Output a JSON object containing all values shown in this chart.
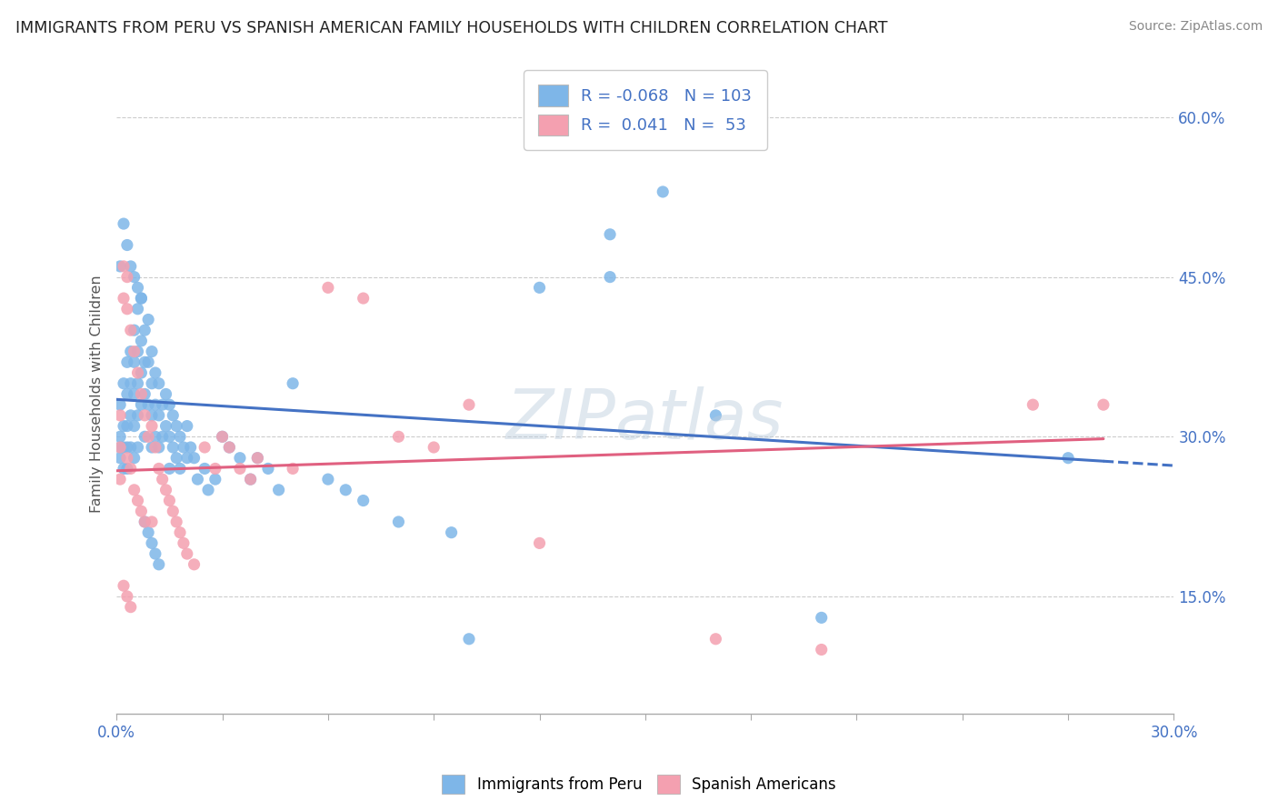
{
  "title": "IMMIGRANTS FROM PERU VS SPANISH AMERICAN FAMILY HOUSEHOLDS WITH CHILDREN CORRELATION CHART",
  "source": "Source: ZipAtlas.com",
  "ylabel": "Family Households with Children",
  "legend_label1": "Immigrants from Peru",
  "legend_label2": "Spanish Americans",
  "R1": -0.068,
  "N1": 103,
  "R2": 0.041,
  "N2": 53,
  "xlim": [
    0.0,
    0.3
  ],
  "ylim": [
    0.04,
    0.64
  ],
  "xticks": [
    0.0,
    0.03,
    0.06,
    0.09,
    0.12,
    0.15,
    0.18,
    0.21,
    0.24,
    0.27,
    0.3
  ],
  "yticks": [
    0.15,
    0.3,
    0.45,
    0.6
  ],
  "color1": "#7EB6E8",
  "color2": "#F4A0B0",
  "line_color1": "#4472C4",
  "line_color2": "#E06080",
  "background_color": "#FFFFFF",
  "grid_color": "#CCCCCC",
  "watermark": "ZIPatlas",
  "watermark_color": "#CCCCCC",
  "blue_trend_x0": 0.0,
  "blue_trend_y0": 0.335,
  "blue_trend_x1": 0.28,
  "blue_trend_y1": 0.277,
  "pink_trend_x0": 0.0,
  "pink_trend_y0": 0.268,
  "pink_trend_x1": 0.28,
  "pink_trend_y1": 0.298,
  "blue_scatter_x": [
    0.001,
    0.001,
    0.001,
    0.001,
    0.002,
    0.002,
    0.002,
    0.002,
    0.003,
    0.003,
    0.003,
    0.003,
    0.003,
    0.004,
    0.004,
    0.004,
    0.004,
    0.005,
    0.005,
    0.005,
    0.005,
    0.005,
    0.006,
    0.006,
    0.006,
    0.006,
    0.006,
    0.007,
    0.007,
    0.007,
    0.007,
    0.008,
    0.008,
    0.008,
    0.008,
    0.009,
    0.009,
    0.009,
    0.01,
    0.01,
    0.01,
    0.01,
    0.011,
    0.011,
    0.011,
    0.012,
    0.012,
    0.012,
    0.013,
    0.013,
    0.014,
    0.014,
    0.015,
    0.015,
    0.015,
    0.016,
    0.016,
    0.017,
    0.017,
    0.018,
    0.018,
    0.019,
    0.02,
    0.02,
    0.021,
    0.022,
    0.023,
    0.025,
    0.026,
    0.028,
    0.03,
    0.032,
    0.035,
    0.038,
    0.04,
    0.043,
    0.046,
    0.05,
    0.06,
    0.065,
    0.07,
    0.08,
    0.095,
    0.1,
    0.12,
    0.14,
    0.155,
    0.17,
    0.2,
    0.27,
    0.001,
    0.002,
    0.003,
    0.004,
    0.005,
    0.006,
    0.007,
    0.008,
    0.009,
    0.01,
    0.011,
    0.012,
    0.14
  ],
  "blue_scatter_y": [
    0.33,
    0.3,
    0.29,
    0.28,
    0.35,
    0.31,
    0.29,
    0.27,
    0.37,
    0.34,
    0.31,
    0.29,
    0.27,
    0.38,
    0.35,
    0.32,
    0.29,
    0.4,
    0.37,
    0.34,
    0.31,
    0.28,
    0.42,
    0.38,
    0.35,
    0.32,
    0.29,
    0.43,
    0.39,
    0.36,
    0.33,
    0.4,
    0.37,
    0.34,
    0.3,
    0.41,
    0.37,
    0.33,
    0.38,
    0.35,
    0.32,
    0.29,
    0.36,
    0.33,
    0.3,
    0.35,
    0.32,
    0.29,
    0.33,
    0.3,
    0.34,
    0.31,
    0.33,
    0.3,
    0.27,
    0.32,
    0.29,
    0.31,
    0.28,
    0.3,
    0.27,
    0.29,
    0.31,
    0.28,
    0.29,
    0.28,
    0.26,
    0.27,
    0.25,
    0.26,
    0.3,
    0.29,
    0.28,
    0.26,
    0.28,
    0.27,
    0.25,
    0.35,
    0.26,
    0.25,
    0.24,
    0.22,
    0.21,
    0.11,
    0.44,
    0.49,
    0.53,
    0.32,
    0.13,
    0.28,
    0.46,
    0.5,
    0.48,
    0.46,
    0.45,
    0.44,
    0.43,
    0.22,
    0.21,
    0.2,
    0.19,
    0.18,
    0.45
  ],
  "pink_scatter_x": [
    0.001,
    0.001,
    0.001,
    0.002,
    0.002,
    0.003,
    0.003,
    0.003,
    0.004,
    0.004,
    0.005,
    0.005,
    0.006,
    0.006,
    0.007,
    0.007,
    0.008,
    0.008,
    0.009,
    0.01,
    0.01,
    0.011,
    0.012,
    0.013,
    0.014,
    0.015,
    0.016,
    0.017,
    0.018,
    0.019,
    0.02,
    0.022,
    0.025,
    0.028,
    0.03,
    0.032,
    0.035,
    0.038,
    0.04,
    0.05,
    0.06,
    0.07,
    0.08,
    0.09,
    0.1,
    0.12,
    0.17,
    0.2,
    0.26,
    0.28,
    0.002,
    0.003,
    0.004
  ],
  "pink_scatter_y": [
    0.32,
    0.29,
    0.26,
    0.46,
    0.43,
    0.45,
    0.42,
    0.28,
    0.4,
    0.27,
    0.38,
    0.25,
    0.36,
    0.24,
    0.34,
    0.23,
    0.32,
    0.22,
    0.3,
    0.31,
    0.22,
    0.29,
    0.27,
    0.26,
    0.25,
    0.24,
    0.23,
    0.22,
    0.21,
    0.2,
    0.19,
    0.18,
    0.29,
    0.27,
    0.3,
    0.29,
    0.27,
    0.26,
    0.28,
    0.27,
    0.44,
    0.43,
    0.3,
    0.29,
    0.33,
    0.2,
    0.11,
    0.1,
    0.33,
    0.33,
    0.16,
    0.15,
    0.14
  ]
}
